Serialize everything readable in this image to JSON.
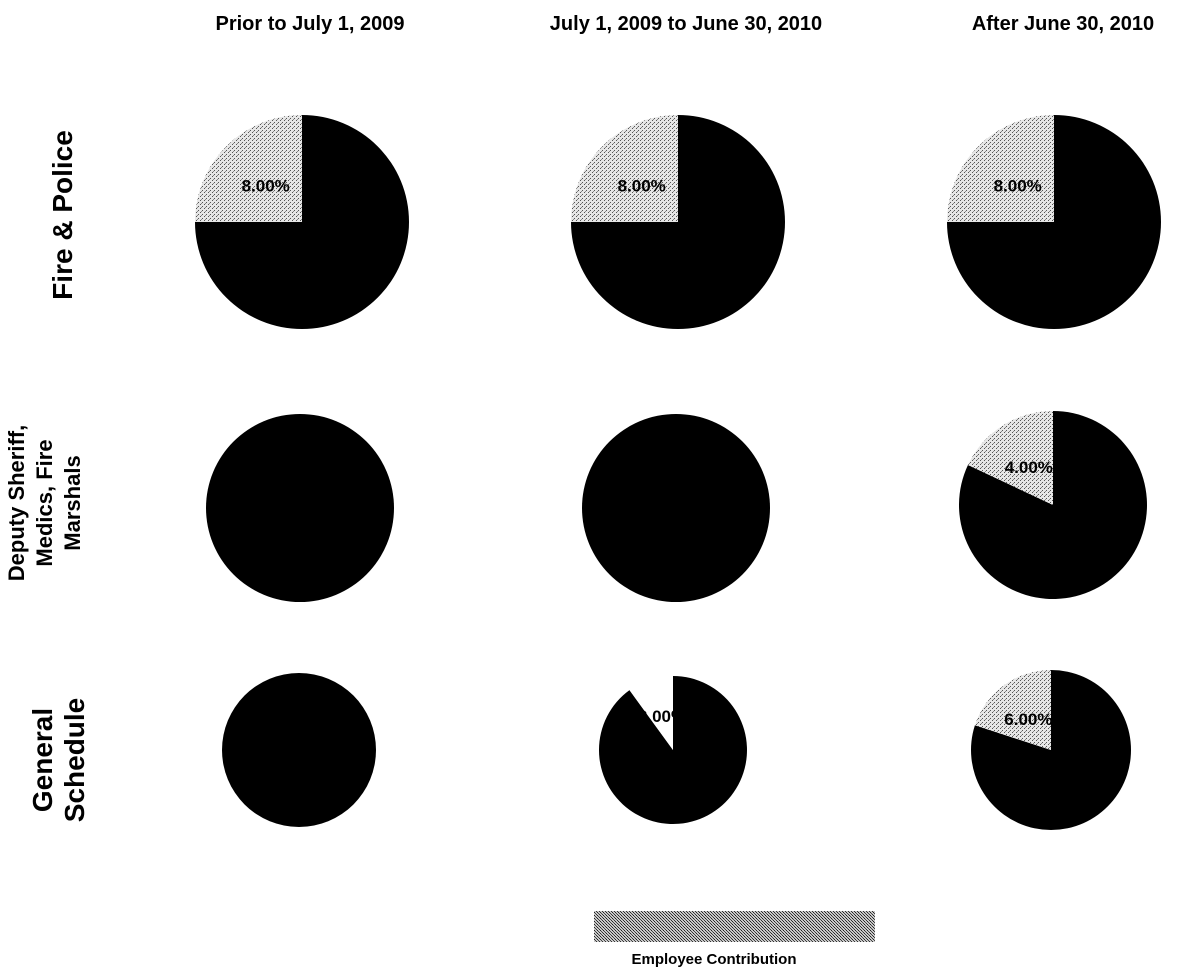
{
  "chart_data": {
    "type": "pie",
    "columns": [
      "Prior to July 1, 2009",
      "July 1, 2009 to June 30, 2010",
      "After June 30, 2010"
    ],
    "rows": [
      [
        "Fire & Police"
      ],
      [
        "Deputy Sheriff,",
        "Medics, Fire",
        "Marshals"
      ],
      [
        "General",
        "Schedule"
      ]
    ],
    "legend": [
      {
        "name": "Employee Contribution",
        "color": "#b0b0b0",
        "pattern": "stipple"
      }
    ],
    "other_color": "#000000",
    "cells": [
      {
        "row": 0,
        "col": 0,
        "employee_contribution_pct": 8.0,
        "employee_share": 0.25,
        "label": "8.00%"
      },
      {
        "row": 0,
        "col": 1,
        "employee_contribution_pct": 8.0,
        "employee_share": 0.25,
        "label": "8.00%"
      },
      {
        "row": 0,
        "col": 2,
        "employee_contribution_pct": 8.0,
        "employee_share": 0.25,
        "label": "8.00%"
      },
      {
        "row": 1,
        "col": 0,
        "employee_contribution_pct": 0,
        "employee_share": 0,
        "label": ""
      },
      {
        "row": 1,
        "col": 1,
        "employee_contribution_pct": 0,
        "employee_share": 0,
        "label": ""
      },
      {
        "row": 1,
        "col": 2,
        "employee_contribution_pct": 4.0,
        "employee_share": 0.18,
        "label": "4.00%"
      },
      {
        "row": 2,
        "col": 0,
        "employee_contribution_pct": 0,
        "employee_share": 0,
        "label": ""
      },
      {
        "row": 2,
        "col": 1,
        "employee_contribution_pct": 2.0,
        "employee_share": 0.1,
        "label": "2.00%"
      },
      {
        "row": 2,
        "col": 2,
        "employee_contribution_pct": 6.0,
        "employee_share": 0.2,
        "label": "6.00%"
      }
    ]
  }
}
